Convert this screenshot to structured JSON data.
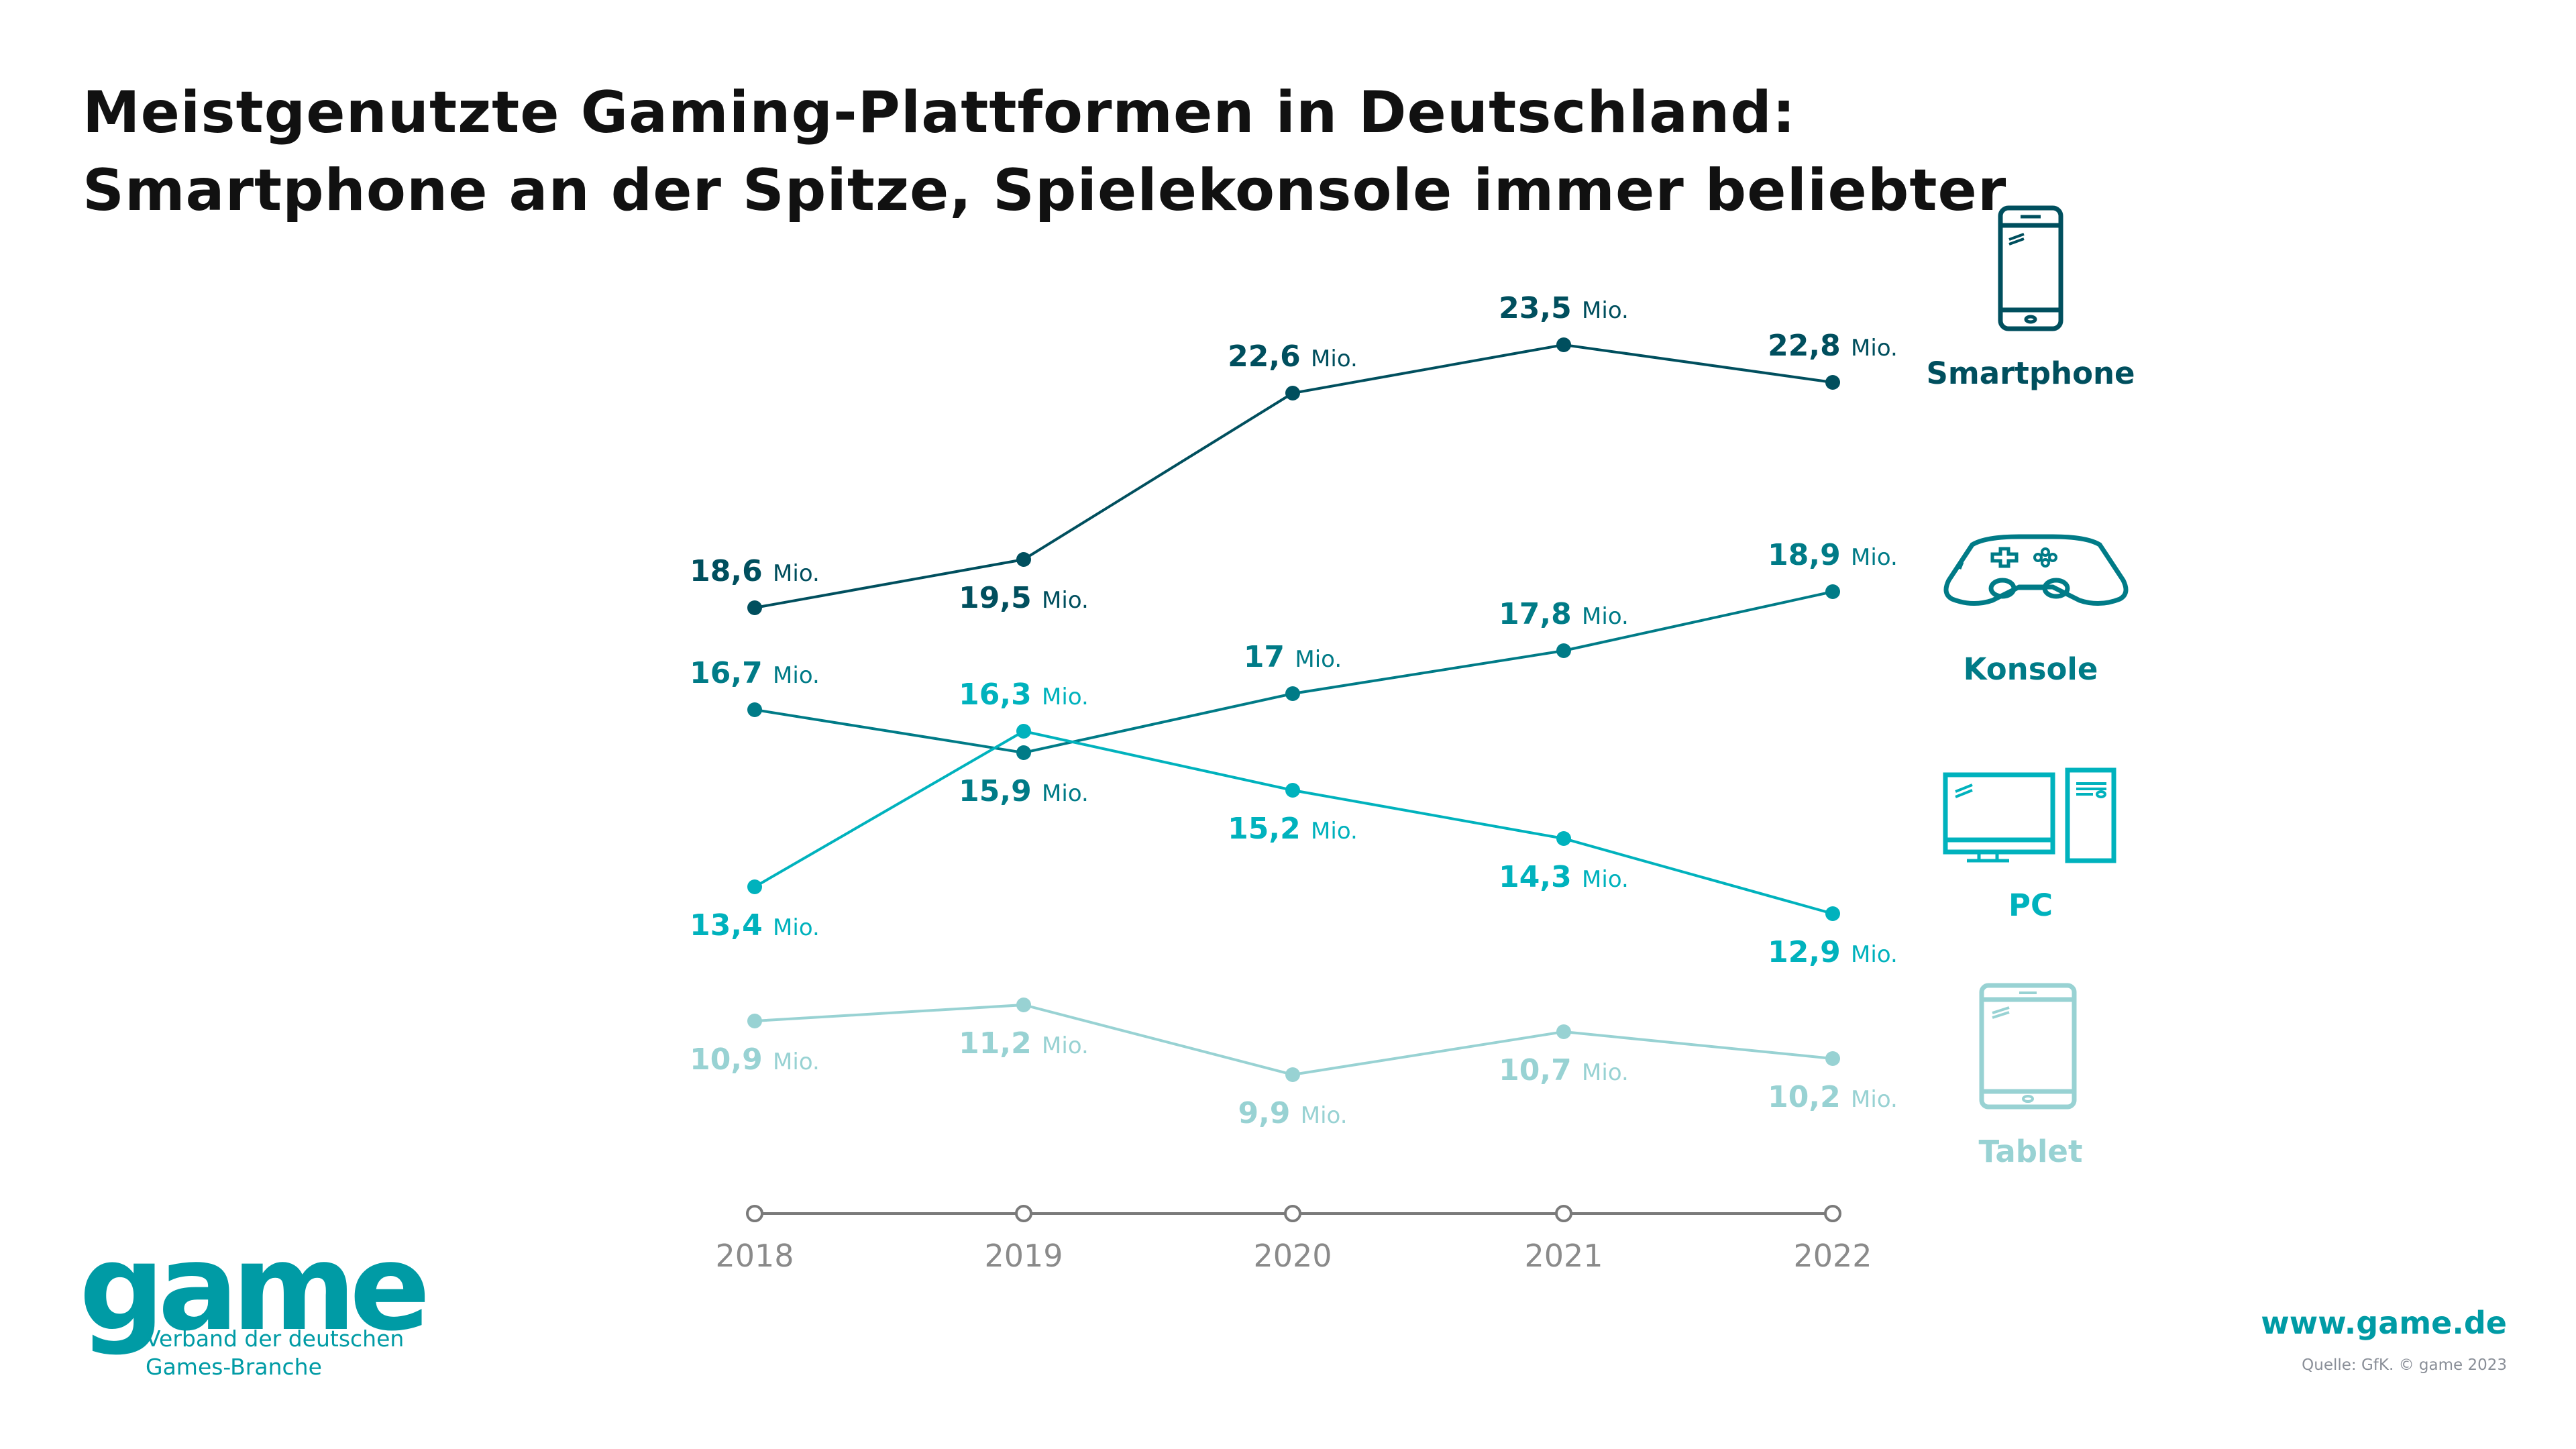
{
  "title_lines": [
    "Meistgenutzte Gaming-Plattformen in Deutschland:",
    "Smartphone an der Spitze, Spielekonsole immer beliebter"
  ],
  "chart_data": {
    "type": "line",
    "categories": [
      "2018",
      "2019",
      "2020",
      "2021",
      "2022"
    ],
    "unit": "Mio.",
    "grid": false,
    "legend_placement": "right",
    "series": [
      {
        "name": "Smartphone",
        "icon": "smartphone-icon",
        "color": "#004f5e",
        "values": [
          18.6,
          19.5,
          22.6,
          23.5,
          22.8
        ],
        "labels": [
          "18,6",
          "19,5",
          "22,6",
          "23,5",
          "22,8"
        ]
      },
      {
        "name": "Konsole",
        "icon": "gamepad-icon",
        "color": "#007b87",
        "values": [
          16.7,
          15.9,
          17,
          17.8,
          18.9
        ],
        "labels": [
          "16,7",
          "15,9",
          "17",
          "17,8",
          "18,9"
        ]
      },
      {
        "name": "PC",
        "icon": "desktop-pc-icon",
        "color": "#00b2bd",
        "values": [
          13.4,
          16.3,
          15.2,
          14.3,
          12.9
        ],
        "labels": [
          "13,4",
          "16,3",
          "15,2",
          "14,3",
          "12,9"
        ]
      },
      {
        "name": "Tablet",
        "icon": "tablet-icon",
        "color": "#98d2d3",
        "values": [
          10.9,
          11.2,
          9.9,
          10.7,
          10.2
        ],
        "labels": [
          "10,9",
          "11,2",
          "9,9",
          "10,7",
          "10,2"
        ]
      }
    ],
    "axis_color": "#7a7a7a"
  },
  "logo": {
    "word": "game",
    "tagline_lines": [
      "Verband der deutschen",
      "Games-Branche"
    ],
    "color": "#009ba5"
  },
  "footer": {
    "url": "www.game.de",
    "source": "Quelle: GfK. © game 2023"
  }
}
